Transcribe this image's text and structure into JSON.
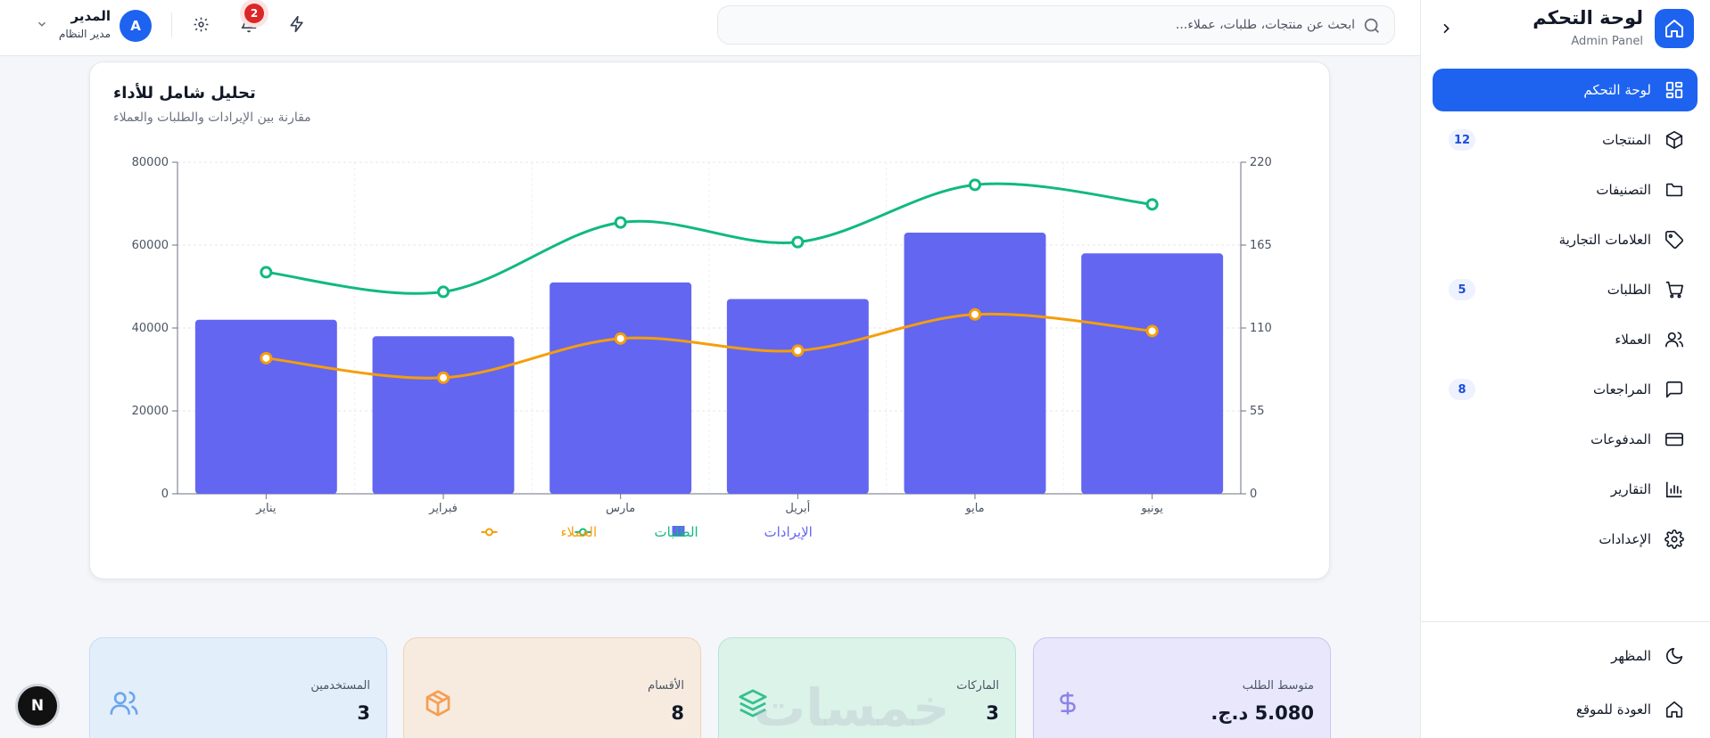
{
  "sidebar": {
    "brand_title": "لوحة التحكم",
    "brand_subtitle": "Admin Panel",
    "items": [
      {
        "label": "لوحة التحكم",
        "icon": "grid-icon",
        "badge": ""
      },
      {
        "label": "المنتجات",
        "icon": "box-icon",
        "badge": "12"
      },
      {
        "label": "التصنيفات",
        "icon": "folder-icon",
        "badge": ""
      },
      {
        "label": "العلامات التجارية",
        "icon": "tag-icon",
        "badge": ""
      },
      {
        "label": "الطلبات",
        "icon": "cart-icon",
        "badge": "5"
      },
      {
        "label": "العملاء",
        "icon": "users-icon",
        "badge": ""
      },
      {
        "label": "المراجعات",
        "icon": "message-icon",
        "badge": "8"
      },
      {
        "label": "المدفوعات",
        "icon": "card-icon",
        "badge": ""
      },
      {
        "label": "التقارير",
        "icon": "bar-chart-icon",
        "badge": ""
      },
      {
        "label": "الإعدادات",
        "icon": "gear-icon",
        "badge": ""
      }
    ],
    "theme_label": "المظهر",
    "back_label": "العودة للموقع"
  },
  "header": {
    "search_placeholder": "ابحث عن منتجات، طلبات، عملاء...",
    "notifications_count": "2",
    "user_name": "المدير",
    "user_role": "مدير النظام",
    "avatar_letter": "A"
  },
  "chart_card": {
    "title": "تحليل شامل للأداء",
    "subtitle": "مقارنة بين الإيرادات والطلبات والعملاء"
  },
  "chart_data": {
    "type": "bar",
    "categories": [
      "يناير",
      "فبراير",
      "مارس",
      "أبريل",
      "مايو",
      "يونيو"
    ],
    "series": [
      {
        "name": "الإيرادات",
        "type": "bar",
        "axis": "left",
        "color": "#6366f1",
        "values": [
          42000,
          38000,
          51000,
          47000,
          63000,
          58000
        ]
      },
      {
        "name": "الطلبات",
        "type": "line",
        "axis": "right",
        "color": "#10b981",
        "values": [
          147,
          134,
          180,
          167,
          205,
          192
        ]
      },
      {
        "name": "العملاء",
        "type": "line",
        "axis": "right",
        "color": "#f59e0b",
        "values": [
          90,
          77,
          103,
          95,
          119,
          108
        ]
      }
    ],
    "y_left": {
      "min": 0,
      "max": 80000,
      "ticks": [
        "0",
        "20000",
        "40000",
        "60000",
        "80000"
      ]
    },
    "y_right": {
      "min": 0,
      "max": 220,
      "ticks": [
        "0",
        "55",
        "110",
        "165",
        "220"
      ]
    },
    "legend_position": "bottom-center",
    "grid": true
  },
  "stats": [
    {
      "label": "متوسط الطلب",
      "value": "5.080 د.ج.",
      "icon": "dollar-icon",
      "bg": "#e8e7fb",
      "border": "#c7c6f3",
      "icon_color": "#8b83e8"
    },
    {
      "label": "الماركات",
      "value": "3",
      "icon": "layers-icon",
      "bg": "#dcf3ea",
      "border": "#b7e4d2",
      "icon_color": "#34c191"
    },
    {
      "label": "الأقسام",
      "value": "8",
      "icon": "package-icon",
      "bg": "#f7ebe0",
      "border": "#f0d2b4",
      "icon_color": "#f59e52"
    },
    {
      "label": "المستخدمين",
      "value": "3",
      "icon": "users-icon",
      "bg": "#e3eefb",
      "border": "#c5dcf5",
      "icon_color": "#6aa5ec"
    }
  ],
  "watermark": "خمسات",
  "dev_badge": "N"
}
